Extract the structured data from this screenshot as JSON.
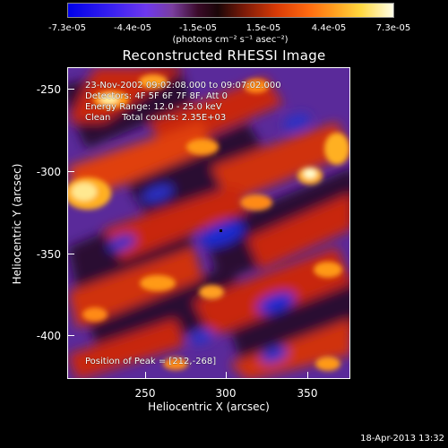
{
  "colorbar": {
    "ticks": [
      "-7.3e-05",
      "-4.4e-05",
      "-1.5e-05",
      "1.5e-05",
      "4.4e-05",
      "7.3e-05"
    ],
    "units": "(photons cm⁻² s⁻¹ asec⁻²)"
  },
  "plot": {
    "title": "Reconstructed RHESSI Image",
    "annotations": {
      "time": "23-Nov-2002 09:02:08.000 to 09:07:02.000",
      "detectors": "Detectors: 4F 5F 6F 7F 8F, Att 0",
      "energy": "Energy Range: 12.0 - 25.0 keV",
      "method": "Clean    Total counts: 2.35E+03",
      "peak": "Position of Peak = [212,-268]"
    },
    "xlabel": "Heliocentric X (arcsec)",
    "ylabel": "Heliocentric Y (arcsec)",
    "xticks": [
      "250",
      "300",
      "350"
    ],
    "yticks": [
      "-250",
      "-300",
      "-350",
      "-400"
    ]
  },
  "footer": {
    "timestamp": "18-Apr-2013 13:32"
  }
}
